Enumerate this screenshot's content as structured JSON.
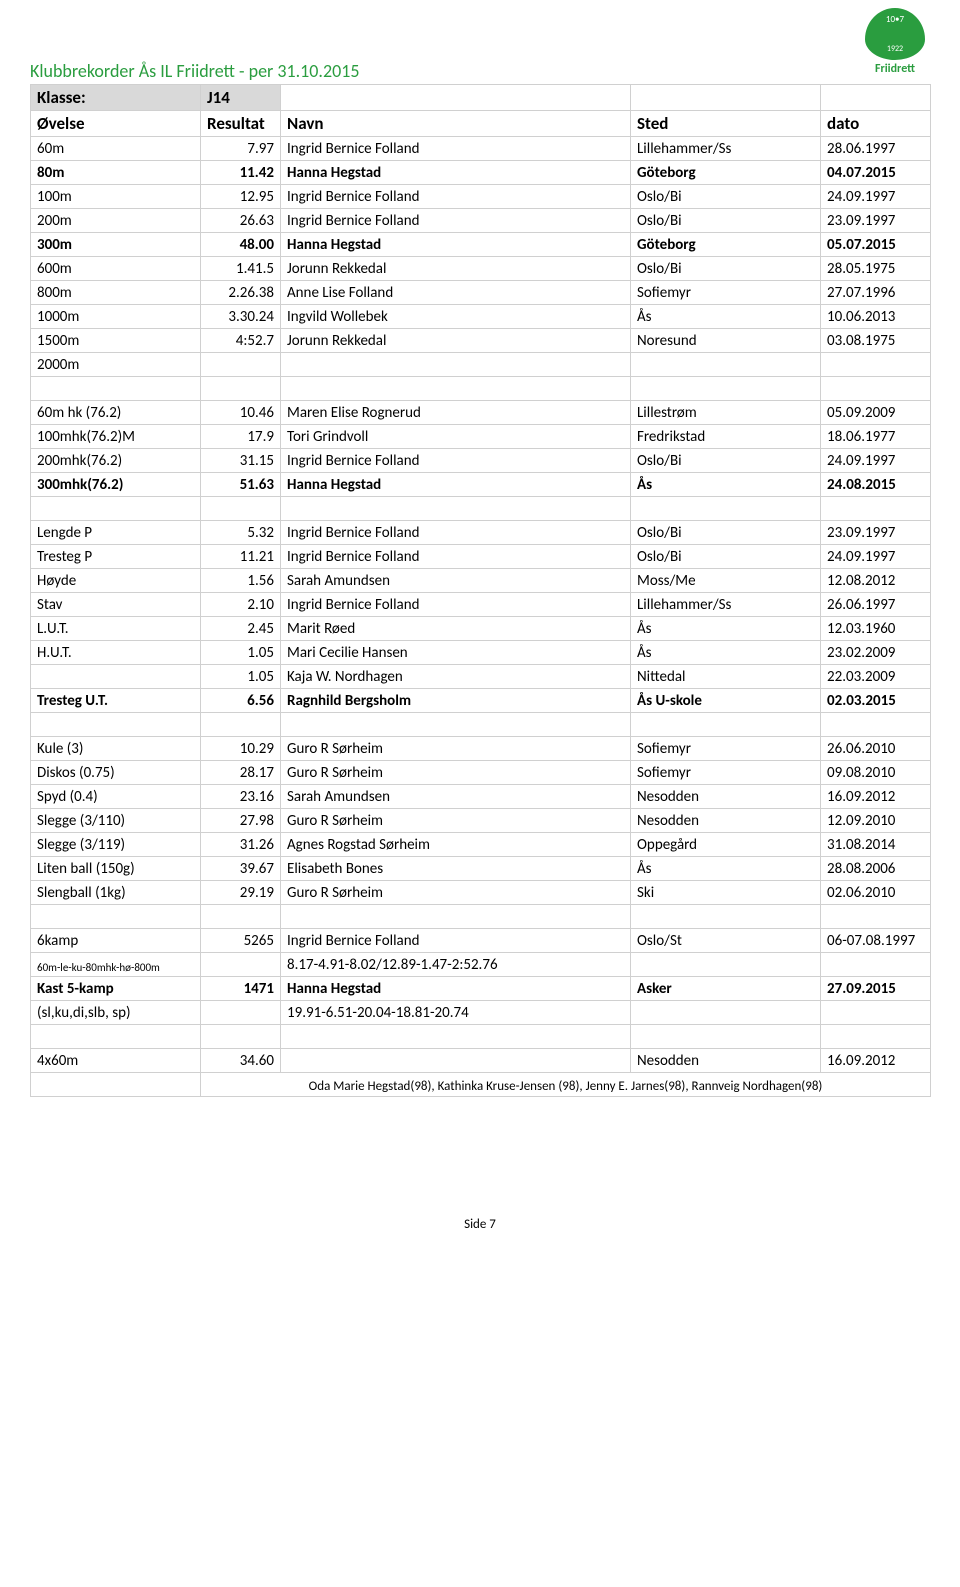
{
  "header": {
    "title": "Klubbrekorder Ås IL Friidrett  - per 31.10.2015",
    "logo_text": "Friidrett"
  },
  "klasse_row": {
    "label": "Klasse:",
    "value": "J14"
  },
  "columns": {
    "ovelse": "Øvelse",
    "resultat": "Resultat",
    "navn": "Navn",
    "sted": "Sted",
    "dato": "dato"
  },
  "blocks": [
    {
      "rows": [
        {
          "o": "60m",
          "r": "7.97",
          "n": "Ingrid Bernice Folland",
          "s": "Lillehammer/Ss",
          "d": "28.06.1997"
        },
        {
          "o": "80m",
          "r": "11.42",
          "n": "Hanna Hegstad",
          "s": "Göteborg",
          "d": "04.07.2015",
          "bold": true
        },
        {
          "o": "100m",
          "r": "12.95",
          "n": "Ingrid Bernice Folland",
          "s": "Oslo/Bi",
          "d": "24.09.1997"
        },
        {
          "o": "200m",
          "r": "26.63",
          "n": "Ingrid Bernice Folland",
          "s": "Oslo/Bi",
          "d": "23.09.1997"
        },
        {
          "o": "300m",
          "r": "48.00",
          "n": "Hanna Hegstad",
          "s": "Göteborg",
          "d": "05.07.2015",
          "bold": true
        },
        {
          "o": "600m",
          "r": "1.41.5",
          "n": "Jorunn Rekkedal",
          "s": "Oslo/Bi",
          "d": "28.05.1975"
        },
        {
          "o": "800m",
          "r": "2.26.38",
          "n": "Anne Lise Folland",
          "s": "Sofiemyr",
          "d": "27.07.1996"
        },
        {
          "o": "1000m",
          "r": "3.30.24",
          "n": "Ingvild Wollebek",
          "s": "Ås",
          "d": "10.06.2013"
        },
        {
          "o": "1500m",
          "r": "4:52.7",
          "n": "Jorunn Rekkedal",
          "s": "Noresund",
          "d": "03.08.1975"
        },
        {
          "o": "2000m",
          "r": "",
          "n": "",
          "s": "",
          "d": ""
        }
      ]
    },
    {
      "rows": [
        {
          "o": "60m hk (76.2)",
          "r": "10.46",
          "n": "Maren Elise Rognerud",
          "s": "Lillestrøm",
          "d": "05.09.2009"
        },
        {
          "o": "100mhk(76.2)M",
          "r": "17.9",
          "n": "Tori Grindvoll",
          "s": "Fredrikstad",
          "d": "18.06.1977"
        },
        {
          "o": "200mhk(76.2)",
          "r": "31.15",
          "n": "Ingrid Bernice Folland",
          "s": "Oslo/Bi",
          "d": "24.09.1997"
        },
        {
          "o": "300mhk(76.2)",
          "r": "51.63",
          "n": "Hanna Hegstad",
          "s": "Ås",
          "d": "24.08.2015",
          "bold": true
        }
      ]
    },
    {
      "rows": [
        {
          "o": "Lengde P",
          "r": "5.32",
          "n": "Ingrid Bernice Folland",
          "s": "Oslo/Bi",
          "d": "23.09.1997"
        },
        {
          "o": "Tresteg P",
          "r": "11.21",
          "n": "Ingrid Bernice Folland",
          "s": "Oslo/Bi",
          "d": "24.09.1997"
        },
        {
          "o": "Høyde",
          "r": "1.56",
          "n": "Sarah Amundsen",
          "s": "Moss/Me",
          "d": "12.08.2012"
        },
        {
          "o": "Stav",
          "r": "2.10",
          "n": "Ingrid Bernice Folland",
          "s": "Lillehammer/Ss",
          "d": "26.06.1997"
        },
        {
          "o": "L.U.T.",
          "r": "2.45",
          "n": "Marit Røed",
          "s": "Ås",
          "d": "12.03.1960"
        },
        {
          "o": "H.U.T.",
          "r": "1.05",
          "n": "Mari Cecilie Hansen",
          "s": "Ås",
          "d": "23.02.2009"
        },
        {
          "o": "",
          "r": "1.05",
          "n": "Kaja W. Nordhagen",
          "s": "Nittedal",
          "d": "22.03.2009"
        },
        {
          "o": "Tresteg U.T.",
          "r": "6.56",
          "n": "Ragnhild Bergsholm",
          "s": "Ås U-skole",
          "d": "02.03.2015",
          "bold": true
        }
      ]
    },
    {
      "rows": [
        {
          "o": "Kule (3)",
          "r": "10.29",
          "n": "Guro R Sørheim",
          "s": "Sofiemyr",
          "d": "26.06.2010"
        },
        {
          "o": "Diskos (0.75)",
          "r": "28.17",
          "n": "Guro R Sørheim",
          "s": "Sofiemyr",
          "d": "09.08.2010"
        },
        {
          "o": "Spyd (0.4)",
          "r": "23.16",
          "n": "Sarah Amundsen",
          "s": "Nesodden",
          "d": "16.09.2012"
        },
        {
          "o": "Slegge (3/110)",
          "r": "27.98",
          "n": "Guro R Sørheim",
          "s": "Nesodden",
          "d": "12.09.2010"
        },
        {
          "o": "Slegge (3/119)",
          "r": "31.26",
          "n": "Agnes Rogstad Sørheim",
          "s": "Oppegård",
          "d": "31.08.2014"
        },
        {
          "o": "Liten ball (150g)",
          "r": "39.67",
          "n": "Elisabeth Bones",
          "s": "Ås",
          "d": "28.08.2006"
        },
        {
          "o": "Slengball (1kg)",
          "r": "29.19",
          "n": "Guro R Sørheim",
          "s": "Ski",
          "d": "02.06.2010"
        }
      ]
    }
  ],
  "multi": {
    "sixkamp": {
      "o": "6kamp",
      "r": "5265",
      "n": "Ingrid Bernice Folland",
      "s": "Oslo/St",
      "d": "06-07.08.1997"
    },
    "sixkamp_detail": {
      "o": "60m-le-ku-80mhk-hø-800m",
      "n": "8.17-4.91-8.02/12.89-1.47-2:52.76"
    },
    "kast5": {
      "o": "Kast 5-kamp",
      "r": "1471",
      "n": "Hanna Hegstad",
      "s": "Asker",
      "d": "27.09.2015"
    },
    "kast5_detail": {
      "o": "(sl,ku,di,slb, sp)",
      "n": "19.91-6.51-20.04-18.81-20.74"
    }
  },
  "relay": {
    "o": "4x60m",
    "r": "34.60",
    "n": "",
    "s": "Nesodden",
    "d": "16.09.2012"
  },
  "footnote": "Oda Marie Hegstad(98), Kathinka Kruse-Jensen (98), Jenny E. Jarnes(98), Rannveig Nordhagen(98)",
  "page_footer": "Side 7"
}
